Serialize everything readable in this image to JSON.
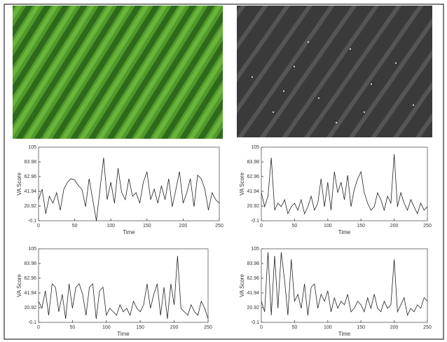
{
  "chart_data": [
    {
      "type": "line",
      "ylabel": "VA Score",
      "xlabel": "Time",
      "color": "#222222",
      "xlim": [
        0,
        250
      ],
      "ylim": [
        -0.1,
        105
      ],
      "xticks": [
        0,
        50,
        100,
        150,
        200,
        250
      ],
      "yticks": [
        -0.1,
        20.92,
        41.94,
        62.96,
        83.98,
        105
      ],
      "x": [
        0,
        5,
        10,
        15,
        20,
        25,
        30,
        35,
        40,
        45,
        50,
        55,
        60,
        65,
        70,
        75,
        80,
        85,
        90,
        95,
        100,
        105,
        110,
        115,
        120,
        125,
        130,
        135,
        140,
        145,
        150,
        155,
        160,
        165,
        170,
        175,
        180,
        185,
        190,
        195,
        200,
        205,
        210,
        215,
        220,
        225,
        230,
        235,
        240,
        245,
        250
      ],
      "values": [
        30,
        45,
        10,
        35,
        25,
        40,
        15,
        45,
        55,
        60,
        58,
        50,
        45,
        20,
        60,
        30,
        -0.1,
        45,
        90,
        30,
        55,
        25,
        75,
        40,
        30,
        60,
        35,
        40,
        25,
        55,
        70,
        30,
        45,
        25,
        50,
        30,
        60,
        20,
        45,
        70,
        25,
        40,
        60,
        20,
        65,
        60,
        45,
        15,
        40,
        30,
        25
      ]
    },
    {
      "type": "line",
      "ylabel": "VA Score",
      "xlabel": "Time",
      "color": "#222222",
      "xlim": [
        0,
        250
      ],
      "ylim": [
        -0.1,
        105
      ],
      "xticks": [
        0,
        50,
        100,
        150,
        200,
        250
      ],
      "yticks": [
        -0.1,
        20.92,
        41.94,
        62.96,
        83.98,
        105
      ],
      "x": [
        0,
        5,
        10,
        15,
        20,
        25,
        30,
        35,
        40,
        45,
        50,
        55,
        60,
        65,
        70,
        75,
        80,
        85,
        90,
        95,
        100,
        105,
        110,
        115,
        120,
        125,
        130,
        135,
        140,
        145,
        150,
        155,
        160,
        165,
        170,
        175,
        180,
        185,
        190,
        195,
        200,
        205,
        210,
        215,
        220,
        225,
        230,
        235,
        240,
        245,
        250
      ],
      "values": [
        40,
        20,
        35,
        90,
        15,
        25,
        20,
        30,
        10,
        20,
        25,
        15,
        30,
        10,
        20,
        35,
        15,
        25,
        60,
        20,
        55,
        15,
        70,
        40,
        55,
        30,
        65,
        20,
        45,
        60,
        70,
        40,
        25,
        15,
        20,
        40,
        30,
        15,
        35,
        25,
        95,
        20,
        40,
        25,
        15,
        30,
        20,
        10,
        25,
        15,
        20
      ]
    },
    {
      "type": "line",
      "ylabel": "VA Score",
      "xlabel": "Time",
      "color": "#222222",
      "xlim": [
        0,
        250
      ],
      "ylim": [
        -0.1,
        105
      ],
      "xticks": [
        0,
        50,
        100,
        150,
        200,
        250
      ],
      "yticks": [
        -0.1,
        20.92,
        41.94,
        62.96,
        83.98,
        105
      ],
      "x": [
        0,
        5,
        10,
        15,
        20,
        25,
        30,
        35,
        40,
        45,
        50,
        55,
        60,
        65,
        70,
        75,
        80,
        85,
        90,
        95,
        100,
        105,
        110,
        115,
        120,
        125,
        130,
        135,
        140,
        145,
        150,
        155,
        160,
        165,
        170,
        175,
        180,
        185,
        190,
        195,
        200,
        205,
        210,
        215,
        220,
        225,
        230,
        235,
        240,
        245,
        250
      ],
      "values": [
        30,
        20,
        45,
        10,
        55,
        50,
        15,
        40,
        5,
        55,
        20,
        50,
        55,
        40,
        10,
        50,
        55,
        5,
        45,
        50,
        10,
        20,
        15,
        10,
        25,
        15,
        20,
        10,
        30,
        20,
        15,
        25,
        55,
        20,
        40,
        55,
        10,
        50,
        5,
        55,
        25,
        95,
        20,
        15,
        10,
        25,
        15,
        10,
        30,
        20,
        5
      ]
    },
    {
      "type": "line",
      "ylabel": "VA Score",
      "xlabel": "Time",
      "color": "#222222",
      "xlim": [
        0,
        250
      ],
      "ylim": [
        -0.1,
        105
      ],
      "xticks": [
        0,
        50,
        100,
        150,
        200,
        250
      ],
      "yticks": [
        -0.1,
        20.92,
        41.94,
        62.96,
        83.98,
        105
      ],
      "x": [
        0,
        5,
        10,
        15,
        20,
        25,
        30,
        35,
        40,
        45,
        50,
        55,
        60,
        65,
        70,
        75,
        80,
        85,
        90,
        95,
        100,
        105,
        110,
        115,
        120,
        125,
        130,
        135,
        140,
        145,
        150,
        155,
        160,
        165,
        170,
        175,
        180,
        185,
        190,
        195,
        200,
        205,
        210,
        215,
        220,
        225,
        230,
        235,
        240,
        245,
        250
      ],
      "values": [
        30,
        15,
        100,
        10,
        95,
        20,
        100,
        60,
        10,
        90,
        30,
        40,
        20,
        55,
        10,
        50,
        55,
        20,
        40,
        30,
        45,
        15,
        35,
        20,
        30,
        25,
        40,
        15,
        20,
        30,
        25,
        15,
        35,
        20,
        40,
        20,
        15,
        30,
        20,
        25,
        90,
        15,
        25,
        35,
        10,
        20,
        15,
        25,
        20,
        35,
        30
      ]
    }
  ]
}
